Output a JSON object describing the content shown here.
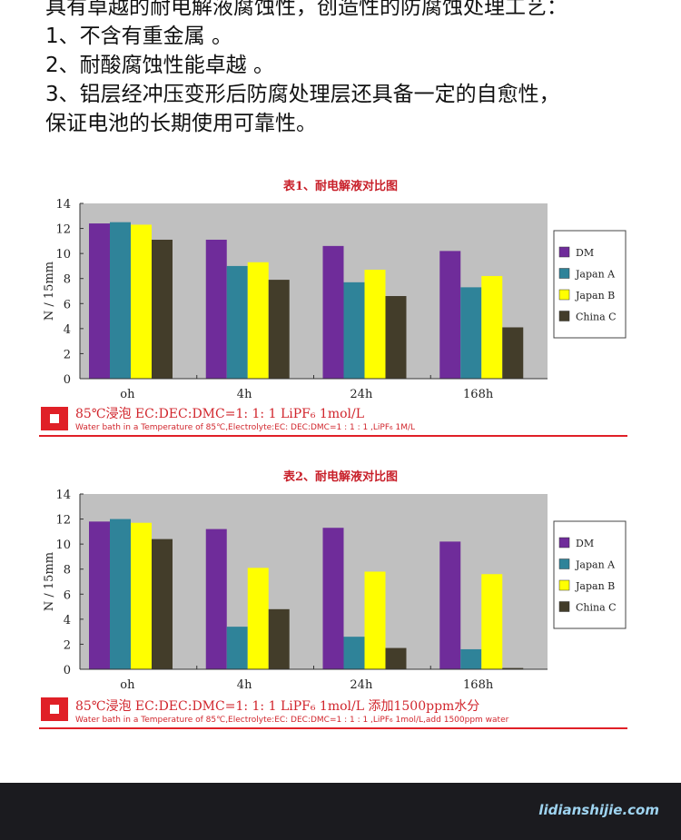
{
  "intro": {
    "lines": [
      "具有卓越的耐电解液腐蚀性，创造性的防腐蚀处理工艺：",
      "1、不含有重金属 。",
      "2、耐酸腐蚀性能卓越 。",
      "3、铝层经冲压变形后防腐处理层还具备一定的自愈性，",
      "保证电池的长期使用可靠性。"
    ]
  },
  "colors": {
    "DM": "#6f2c9a",
    "Japan A": "#2f8399",
    "Japan B": "#ffff00",
    "China C": "#433d2a",
    "plot_bg": "#c0c0c0",
    "accent": "#e02027"
  },
  "chart_data": [
    {
      "type": "bar",
      "title": "表1、耐电解液对比图",
      "ylabel": "N / 15mm",
      "xlabel": "",
      "ylim": [
        0,
        14
      ],
      "yticks": [
        0,
        2,
        4,
        6,
        8,
        10,
        12,
        14
      ],
      "grid": false,
      "legend": "right",
      "categories": [
        "oh",
        "4h",
        "24h",
        "168h"
      ],
      "series": [
        {
          "name": "DM",
          "values": [
            12.4,
            11.1,
            10.6,
            10.2
          ]
        },
        {
          "name": "Japan A",
          "values": [
            12.5,
            9.0,
            7.7,
            7.3
          ]
        },
        {
          "name": "Japan B",
          "values": [
            12.3,
            9.3,
            8.7,
            8.2
          ]
        },
        {
          "name": "China C",
          "values": [
            11.1,
            7.9,
            6.6,
            4.1
          ]
        }
      ],
      "caption": "85℃浸泡  EC:DEC:DMC=1: 1: 1  LiPF₆ 1mol/L",
      "caption_en": "Water bath in a Temperature of 85℃,Electrolyte:EC: DEC:DMC=1 : 1 : 1 ,LiPF₆ 1M/L"
    },
    {
      "type": "bar",
      "title": "表2、耐电解液对比图",
      "ylabel": "N / 15mm",
      "xlabel": "",
      "ylim": [
        0,
        14
      ],
      "yticks": [
        0,
        2,
        4,
        6,
        8,
        10,
        12,
        14
      ],
      "grid": false,
      "legend": "right",
      "categories": [
        "oh",
        "4h",
        "24h",
        "168h"
      ],
      "series": [
        {
          "name": "DM",
          "values": [
            11.8,
            11.2,
            11.3,
            10.2
          ]
        },
        {
          "name": "Japan A",
          "values": [
            12.0,
            3.4,
            2.6,
            1.6
          ]
        },
        {
          "name": "Japan B",
          "values": [
            11.7,
            8.1,
            7.8,
            7.6
          ]
        },
        {
          "name": "China C",
          "values": [
            10.4,
            4.8,
            1.7,
            0.1
          ]
        }
      ],
      "caption": "85℃浸泡  EC:DEC:DMC=1: 1: 1  LiPF₆ 1mol/L  添加1500ppm水分",
      "caption_en": "Water bath in a Temperature of 85℃,Electrolyte:EC: DEC:DMC=1 : 1 : 1 ,LiPF₆ 1mol/L,add 1500ppm water"
    }
  ],
  "footer": {
    "watermark": "lidianshijie.com"
  }
}
